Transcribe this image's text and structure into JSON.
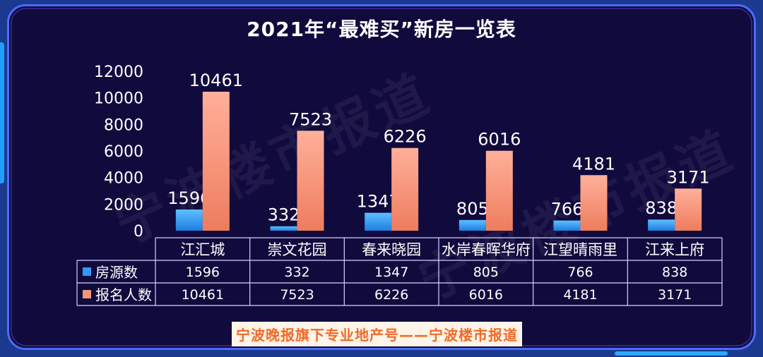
{
  "chart_data": {
    "type": "bar",
    "title": "2021年“最难买”新房一览表",
    "categories": [
      "江汇城",
      "崇文花园",
      "春来晓园",
      "水岸春晖华府",
      "江望晴雨里",
      "江来上府"
    ],
    "series": [
      {
        "name": "房源数",
        "values": [
          1596,
          332,
          1347,
          805,
          766,
          838
        ],
        "color": "#2f9bff"
      },
      {
        "name": "报名人数",
        "values": [
          10461,
          7523,
          6226,
          6016,
          4181,
          3171
        ],
        "color": "#f3957a"
      }
    ],
    "ylim": [
      0,
      12000
    ],
    "yticks": [
      "12000",
      "10000",
      "8000",
      "6000",
      "4000",
      "2000",
      "0"
    ],
    "grid": false,
    "legend": "data-table"
  },
  "watermark": "宁波楼市报道",
  "footer": "宁波晚报旗下专业地产号——宁波楼市报道"
}
